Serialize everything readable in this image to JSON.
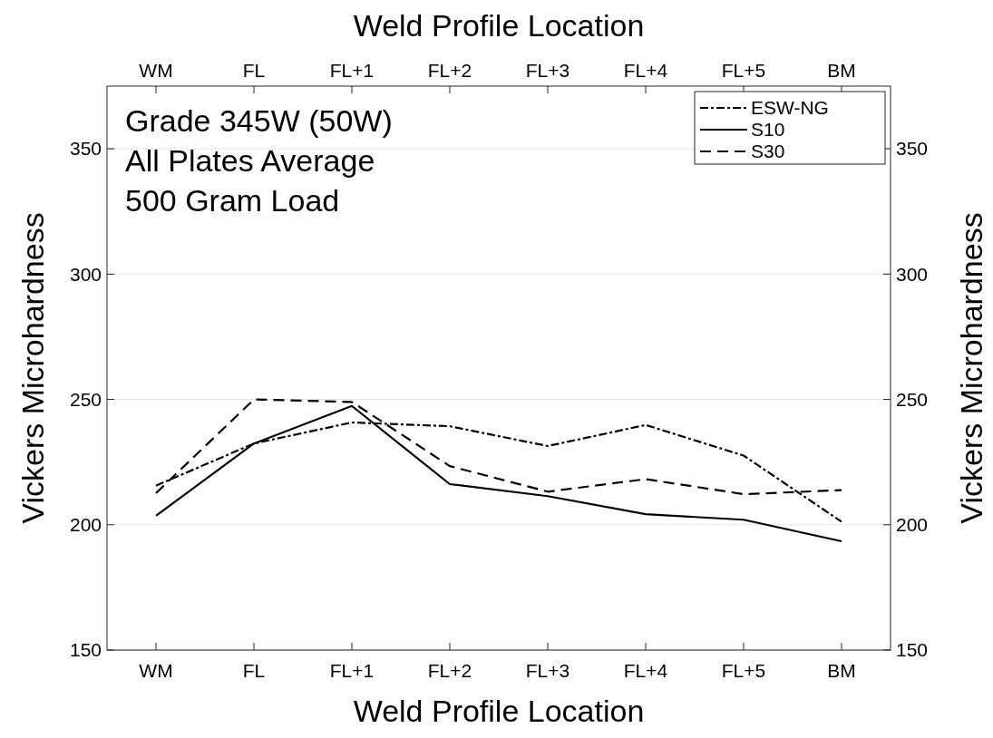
{
  "chart_data": {
    "type": "line",
    "xlabel": "Weld Profile Location",
    "x2label": "Weld Profile Location",
    "ylabel": "Vickers Microhardness",
    "y2label": "Vickers Microhardness",
    "categories": [
      "WM",
      "FL",
      "FL+1",
      "FL+2",
      "FL+3",
      "FL+4",
      "FL+5",
      "BM"
    ],
    "series": [
      {
        "name": "ESW-NG",
        "color": "#000000",
        "line_style": "dashdot",
        "values": [
          215.6,
          232.4,
          240.8,
          239.3,
          231.4,
          239.8,
          227.6,
          201.2
        ]
      },
      {
        "name": "S10",
        "color": "#000000",
        "line_style": "solid",
        "values": [
          203.6,
          232.4,
          247.4,
          216.2,
          211.4,
          204.2,
          202,
          193.4
        ]
      },
      {
        "name": "S30",
        "color": "#000000",
        "line_style": "dashed",
        "values": [
          212.6,
          250,
          249,
          223.4,
          213.2,
          218.2,
          212.2,
          213.8
        ]
      }
    ],
    "ylim": [
      150,
      375
    ],
    "yticks": [
      150,
      200,
      250,
      300,
      350
    ],
    "y2lim": [
      150,
      375
    ],
    "y2ticks": [
      150,
      200,
      250,
      300,
      350
    ],
    "grid": "y",
    "legend": "top right",
    "marker": "none",
    "annotations": [
      "Grade 345W (50W)",
      "All Plates Average",
      "500 Gram Load"
    ]
  }
}
